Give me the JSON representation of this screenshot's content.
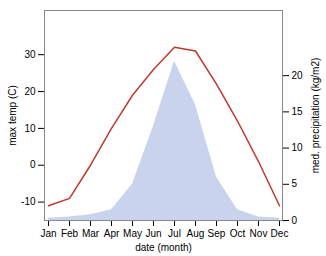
{
  "chart_data": {
    "type": "line",
    "xlabel": "date (month)",
    "ylabel": "max temp (C)",
    "y2label": "med. precipitation (kg/m2)",
    "categories": [
      "Jan",
      "Feb",
      "Mar",
      "Apr",
      "May",
      "Jun",
      "Jul",
      "Aug",
      "Sep",
      "Oct",
      "Nov",
      "Dec"
    ],
    "series": [
      {
        "type": "line",
        "color": "#c0392b",
        "values": [
          -11,
          -9,
          0,
          10,
          19,
          26,
          32,
          31,
          22,
          12,
          1,
          -11
        ]
      },
      {
        "type": "area",
        "color": "#b8c4e8",
        "axis": "y2",
        "values": [
          0.3,
          0.5,
          0.8,
          1.5,
          5.0,
          13.0,
          22.0,
          16.0,
          6.0,
          1.5,
          0.5,
          0.3
        ]
      }
    ],
    "ylim": [
      -15,
      42
    ],
    "yticks": [
      -10,
      0,
      10,
      20,
      30
    ],
    "y2lim": [
      0,
      29
    ],
    "y2ticks": [
      0,
      5,
      10,
      15,
      20
    ]
  }
}
